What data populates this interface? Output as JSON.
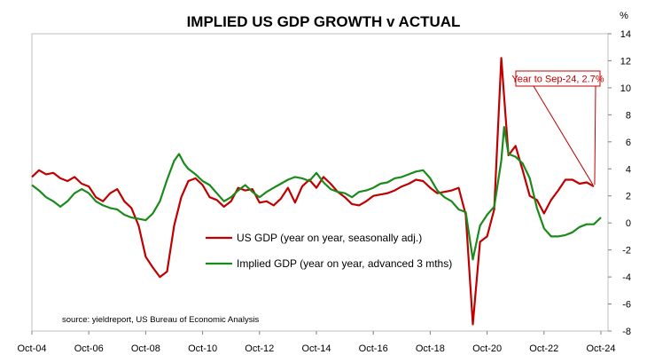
{
  "chart_data": {
    "type": "line",
    "title": "IMPLIED US GDP GROWTH v ACTUAL",
    "yunit": "%",
    "ylim": [
      -8,
      14
    ],
    "yticks": [
      14,
      12,
      10,
      8,
      6,
      4,
      2,
      0,
      -2,
      -4,
      -6,
      -8
    ],
    "xlim": [
      2004.75,
      2025.0
    ],
    "xticks": [
      {
        "label": "Oct-04",
        "x": 2004.75
      },
      {
        "label": "Oct-06",
        "x": 2006.75
      },
      {
        "label": "Oct-08",
        "x": 2008.75
      },
      {
        "label": "Oct-10",
        "x": 2010.75
      },
      {
        "label": "Oct-12",
        "x": 2012.75
      },
      {
        "label": "Oct-14",
        "x": 2014.75
      },
      {
        "label": "Oct-16",
        "x": 2016.75
      },
      {
        "label": "Oct-18",
        "x": 2018.75
      },
      {
        "label": "Oct-20",
        "x": 2020.75
      },
      {
        "label": "Oct-22",
        "x": 2022.75
      },
      {
        "label": "Oct-24",
        "x": 2024.75
      }
    ],
    "grid": false,
    "legend_position": "bottom-center",
    "series": [
      {
        "name": "US GDP (year on year, seasonally adj.)",
        "color": "#c00000",
        "points": [
          [
            2004.75,
            3.4
          ],
          [
            2005.0,
            3.9
          ],
          [
            2005.25,
            3.6
          ],
          [
            2005.5,
            3.7
          ],
          [
            2005.75,
            3.3
          ],
          [
            2006.0,
            3.1
          ],
          [
            2006.25,
            3.4
          ],
          [
            2006.5,
            2.9
          ],
          [
            2006.75,
            2.7
          ],
          [
            2007.0,
            1.9
          ],
          [
            2007.25,
            1.6
          ],
          [
            2007.5,
            2.2
          ],
          [
            2007.75,
            2.5
          ],
          [
            2008.0,
            1.6
          ],
          [
            2008.25,
            1.1
          ],
          [
            2008.5,
            -0.2
          ],
          [
            2008.75,
            -2.5
          ],
          [
            2009.0,
            -3.3
          ],
          [
            2009.25,
            -4.0
          ],
          [
            2009.5,
            -3.6
          ],
          [
            2009.75,
            -0.2
          ],
          [
            2010.0,
            1.9
          ],
          [
            2010.25,
            3.1
          ],
          [
            2010.5,
            3.3
          ],
          [
            2010.75,
            2.8
          ],
          [
            2011.0,
            1.9
          ],
          [
            2011.25,
            1.7
          ],
          [
            2011.5,
            1.2
          ],
          [
            2011.75,
            1.6
          ],
          [
            2012.0,
            2.6
          ],
          [
            2012.25,
            2.4
          ],
          [
            2012.5,
            2.5
          ],
          [
            2012.75,
            1.5
          ],
          [
            2013.0,
            1.6
          ],
          [
            2013.25,
            1.3
          ],
          [
            2013.5,
            1.8
          ],
          [
            2013.75,
            2.6
          ],
          [
            2014.0,
            1.5
          ],
          [
            2014.25,
            2.7
          ],
          [
            2014.5,
            3.2
          ],
          [
            2014.75,
            2.6
          ],
          [
            2015.0,
            3.4
          ],
          [
            2015.25,
            2.9
          ],
          [
            2015.5,
            2.3
          ],
          [
            2015.75,
            1.9
          ],
          [
            2016.0,
            1.4
          ],
          [
            2016.25,
            1.3
          ],
          [
            2016.5,
            1.6
          ],
          [
            2016.75,
            2.0
          ],
          [
            2017.0,
            2.1
          ],
          [
            2017.25,
            2.2
          ],
          [
            2017.5,
            2.4
          ],
          [
            2017.75,
            2.7
          ],
          [
            2018.0,
            2.9
          ],
          [
            2018.25,
            3.2
          ],
          [
            2018.5,
            3.1
          ],
          [
            2018.75,
            2.6
          ],
          [
            2019.0,
            2.2
          ],
          [
            2019.25,
            2.3
          ],
          [
            2019.5,
            2.4
          ],
          [
            2019.75,
            2.6
          ],
          [
            2020.0,
            0.6
          ],
          [
            2020.25,
            -7.5
          ],
          [
            2020.5,
            -1.4
          ],
          [
            2020.75,
            -1.0
          ],
          [
            2021.0,
            1.0
          ],
          [
            2021.25,
            12.2
          ],
          [
            2021.5,
            5.0
          ],
          [
            2021.75,
            5.7
          ],
          [
            2022.0,
            3.9
          ],
          [
            2022.25,
            2.0
          ],
          [
            2022.5,
            1.7
          ],
          [
            2022.75,
            0.7
          ],
          [
            2023.0,
            1.7
          ],
          [
            2023.25,
            2.4
          ],
          [
            2023.5,
            3.2
          ],
          [
            2023.75,
            3.2
          ],
          [
            2024.0,
            2.9
          ],
          [
            2024.25,
            3.0
          ],
          [
            2024.5,
            2.7
          ]
        ]
      },
      {
        "name": "Implied GDP (year on year, advanced 3 mths)",
        "color": "#1a8a1a",
        "points": [
          [
            2004.75,
            2.8
          ],
          [
            2005.0,
            2.4
          ],
          [
            2005.25,
            1.9
          ],
          [
            2005.5,
            1.6
          ],
          [
            2005.75,
            1.2
          ],
          [
            2006.0,
            1.6
          ],
          [
            2006.25,
            2.2
          ],
          [
            2006.5,
            2.5
          ],
          [
            2006.75,
            2.2
          ],
          [
            2007.0,
            1.6
          ],
          [
            2007.25,
            1.3
          ],
          [
            2007.5,
            1.1
          ],
          [
            2007.75,
            1.0
          ],
          [
            2008.0,
            0.6
          ],
          [
            2008.25,
            0.4
          ],
          [
            2008.5,
            0.3
          ],
          [
            2008.75,
            0.2
          ],
          [
            2009.0,
            0.7
          ],
          [
            2009.25,
            1.6
          ],
          [
            2009.5,
            3.2
          ],
          [
            2009.75,
            4.6
          ],
          [
            2009.92,
            5.1
          ],
          [
            2010.1,
            4.4
          ],
          [
            2010.25,
            4.0
          ],
          [
            2010.5,
            3.6
          ],
          [
            2010.75,
            3.1
          ],
          [
            2011.0,
            2.8
          ],
          [
            2011.25,
            2.2
          ],
          [
            2011.5,
            1.6
          ],
          [
            2011.75,
            1.9
          ],
          [
            2012.0,
            2.4
          ],
          [
            2012.25,
            2.8
          ],
          [
            2012.5,
            2.3
          ],
          [
            2012.75,
            1.9
          ],
          [
            2013.0,
            2.3
          ],
          [
            2013.25,
            2.6
          ],
          [
            2013.5,
            2.9
          ],
          [
            2013.75,
            3.2
          ],
          [
            2014.0,
            3.4
          ],
          [
            2014.25,
            3.3
          ],
          [
            2014.5,
            3.1
          ],
          [
            2014.75,
            3.7
          ],
          [
            2015.0,
            3.0
          ],
          [
            2015.25,
            2.5
          ],
          [
            2015.5,
            2.3
          ],
          [
            2015.75,
            2.2
          ],
          [
            2016.0,
            1.9
          ],
          [
            2016.25,
            2.3
          ],
          [
            2016.5,
            2.4
          ],
          [
            2016.75,
            2.6
          ],
          [
            2017.0,
            2.9
          ],
          [
            2017.25,
            3.0
          ],
          [
            2017.5,
            3.3
          ],
          [
            2017.75,
            3.4
          ],
          [
            2018.0,
            3.6
          ],
          [
            2018.25,
            3.8
          ],
          [
            2018.5,
            3.9
          ],
          [
            2018.75,
            3.3
          ],
          [
            2019.0,
            2.4
          ],
          [
            2019.25,
            1.9
          ],
          [
            2019.5,
            1.6
          ],
          [
            2019.75,
            1.0
          ],
          [
            2020.0,
            0.8
          ],
          [
            2020.25,
            -2.7
          ],
          [
            2020.5,
            -0.2
          ],
          [
            2020.75,
            0.6
          ],
          [
            2021.0,
            1.2
          ],
          [
            2021.25,
            4.6
          ],
          [
            2021.35,
            7.1
          ],
          [
            2021.5,
            5.1
          ],
          [
            2021.75,
            4.9
          ],
          [
            2022.0,
            4.4
          ],
          [
            2022.25,
            3.3
          ],
          [
            2022.5,
            1.1
          ],
          [
            2022.75,
            -0.4
          ],
          [
            2023.0,
            -1.0
          ],
          [
            2023.25,
            -1.0
          ],
          [
            2023.5,
            -0.9
          ],
          [
            2023.75,
            -0.7
          ],
          [
            2024.0,
            -0.3
          ],
          [
            2024.25,
            -0.1
          ],
          [
            2024.5,
            -0.1
          ],
          [
            2024.75,
            0.4
          ]
        ]
      }
    ],
    "annotation": {
      "text": "Year to Sep-24, 2.7%",
      "x": 2024.5,
      "y": 2.7
    },
    "source_note": "source: yieldreport, US Bureau of Economic Analysis"
  }
}
